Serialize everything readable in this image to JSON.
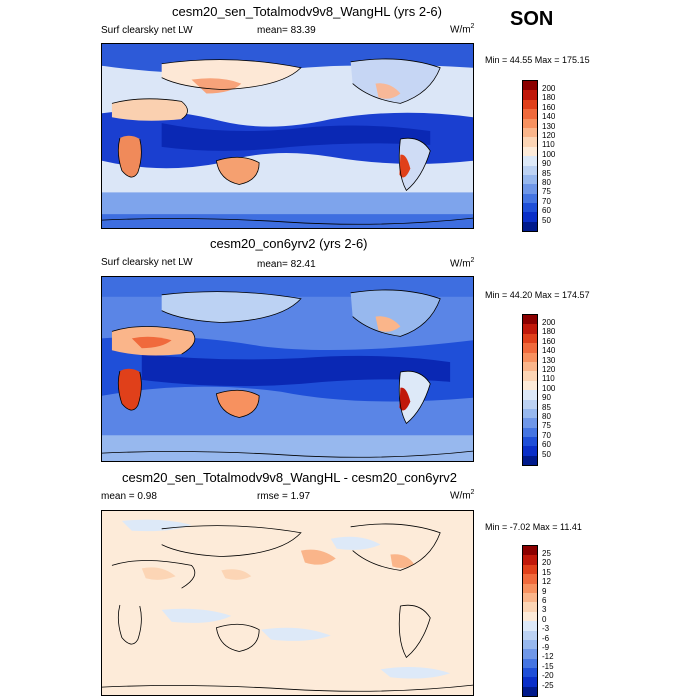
{
  "season": "SON",
  "panels": [
    {
      "title": "cesm20_sen_Totalmodv9v8_WangHL (yrs 2-6)",
      "variable": "Surf clearsky net LW",
      "mean_label": "mean=",
      "mean": "83.39",
      "units": "W/m",
      "units_exp": "2",
      "minmax": "Min =  44.55 Max = 175.15",
      "field": "absolute"
    },
    {
      "title": "cesm20_con6yrv2 (yrs 2-6)",
      "variable": "Surf clearsky net LW",
      "mean_label": "mean=",
      "mean": "82.41",
      "units": "W/m",
      "units_exp": "2",
      "minmax": "Min =  44.20 Max = 174.57",
      "field": "absolute"
    },
    {
      "title": "cesm20_sen_Totalmodv9v8_WangHL - cesm20_con6yrv2",
      "mean_label": "mean =",
      "mean": "0.98",
      "rmse_label": "rmse =",
      "rmse": "1.97",
      "units": "W/m",
      "units_exp": "2",
      "minmax": "Min =  -7.02 Max =  11.41",
      "field": "difference"
    }
  ],
  "colorbars": {
    "absolute": {
      "levels": [
        "200",
        "180",
        "160",
        "140",
        "130",
        "120",
        "110",
        "100",
        "90",
        "85",
        "80",
        "75",
        "70",
        "60",
        "50"
      ],
      "colors": [
        "#8b0000",
        "#c0180a",
        "#e0401a",
        "#f06a3c",
        "#f7915f",
        "#fab58a",
        "#fcd5b5",
        "#fdebd9",
        "#dde9f8",
        "#bcd2f3",
        "#97b8ee",
        "#6f97e8",
        "#4575e2",
        "#1f4fd8",
        "#0a2fc8",
        "#001a8c"
      ]
    },
    "difference": {
      "levels": [
        "25",
        "20",
        "15",
        "12",
        "9",
        "6",
        "3",
        "0",
        "-3",
        "-6",
        "-9",
        "-12",
        "-15",
        "-20",
        "-25"
      ],
      "colors": [
        "#8b0000",
        "#c0180a",
        "#e0401a",
        "#f06a3c",
        "#f7915f",
        "#fab58a",
        "#fcd5b5",
        "#fdebd9",
        "#dde9f8",
        "#bcd2f3",
        "#97b8ee",
        "#6f97e8",
        "#4575e2",
        "#1f4fd8",
        "#0a2fc8",
        "#001a8c"
      ]
    }
  }
}
